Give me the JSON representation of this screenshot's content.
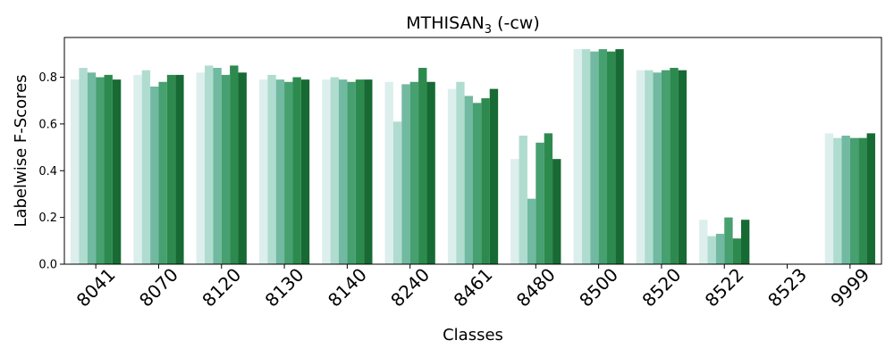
{
  "chart_data": {
    "type": "bar",
    "title_main": "MTHISAN",
    "title_sub": "3",
    "title_suffix": " (-cw)",
    "xlabel": "Classes",
    "ylabel": "Labelwise F-Scores",
    "ylim": [
      0,
      0.97
    ],
    "yticks": [
      "0.0",
      "0.2",
      "0.4",
      "0.6",
      "0.8"
    ],
    "grid": false,
    "legend": false,
    "categories": [
      "8041",
      "8070",
      "8120",
      "8130",
      "8140",
      "8240",
      "8461",
      "8480",
      "8500",
      "8520",
      "8522",
      "8523",
      "9999"
    ],
    "colors": [
      "#dcefed",
      "#b0dcd0",
      "#71b9a1",
      "#46a070",
      "#2d8a4e",
      "#176a33"
    ],
    "series": [
      {
        "values": [
          0.79,
          0.81,
          0.82,
          0.79,
          0.79,
          0.78,
          0.75,
          0.45,
          0.92,
          0.83,
          0.19,
          0,
          0.56
        ]
      },
      {
        "values": [
          0.84,
          0.83,
          0.85,
          0.81,
          0.8,
          0.61,
          0.78,
          0.55,
          0.92,
          0.83,
          0.12,
          0,
          0.54
        ]
      },
      {
        "values": [
          0.82,
          0.76,
          0.84,
          0.79,
          0.79,
          0.77,
          0.72,
          0.28,
          0.91,
          0.82,
          0.13,
          0,
          0.55
        ]
      },
      {
        "values": [
          0.8,
          0.78,
          0.81,
          0.78,
          0.78,
          0.78,
          0.69,
          0.52,
          0.92,
          0.83,
          0.2,
          0,
          0.54
        ]
      },
      {
        "values": [
          0.81,
          0.81,
          0.85,
          0.8,
          0.79,
          0.84,
          0.71,
          0.56,
          0.91,
          0.84,
          0.11,
          0,
          0.54
        ]
      }
    ]
  }
}
